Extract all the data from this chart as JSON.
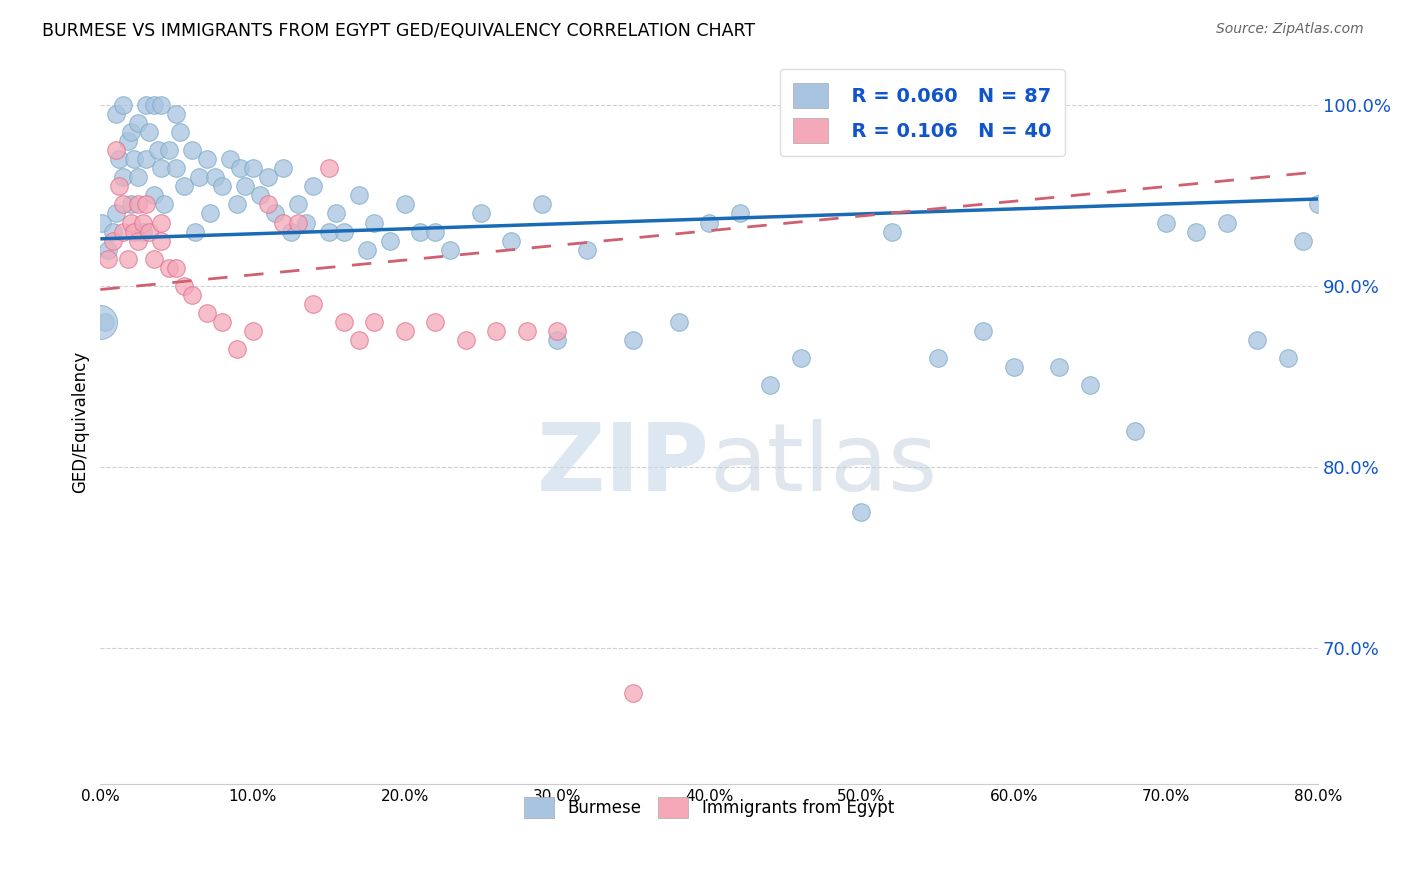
{
  "title": "BURMESE VS IMMIGRANTS FROM EGYPT GED/EQUIVALENCY CORRELATION CHART",
  "source": "Source: ZipAtlas.com",
  "ylabel": "GED/Equivalency",
  "x_min": 0.0,
  "x_max": 0.8,
  "y_min": 0.625,
  "y_max": 1.025,
  "ytick_vals": [
    0.7,
    0.8,
    0.9,
    1.0
  ],
  "ytick_labels": [
    "70.0%",
    "80.0%",
    "90.0%",
    "100.0%"
  ],
  "xtick_vals": [
    0.0,
    0.1,
    0.2,
    0.3,
    0.4,
    0.5,
    0.6,
    0.7,
    0.8
  ],
  "xtick_labels": [
    "0.0%",
    "10.0%",
    "20.0%",
    "30.0%",
    "40.0%",
    "50.0%",
    "60.0%",
    "70.0%",
    "80.0%"
  ],
  "burmese_R": 0.06,
  "burmese_N": 87,
  "egypt_R": 0.106,
  "egypt_N": 40,
  "burmese_color": "#a8c4e0",
  "burmese_edge_color": "#7aaac8",
  "egypt_color": "#f4a8b8",
  "egypt_edge_color": "#e07090",
  "burmese_line_color": "#1a6bb5",
  "egypt_line_color": "#d06070",
  "legend_color": "#1155cc",
  "watermark_color": "#c5d8ea",
  "grid_color": "#d0d0d0",
  "burmese_x": [
    0.001,
    0.003,
    0.005,
    0.008,
    0.01,
    0.01,
    0.012,
    0.015,
    0.015,
    0.018,
    0.02,
    0.02,
    0.022,
    0.025,
    0.025,
    0.028,
    0.03,
    0.03,
    0.032,
    0.035,
    0.035,
    0.038,
    0.04,
    0.04,
    0.042,
    0.045,
    0.05,
    0.05,
    0.052,
    0.055,
    0.06,
    0.062,
    0.065,
    0.07,
    0.072,
    0.075,
    0.08,
    0.085,
    0.09,
    0.092,
    0.095,
    0.1,
    0.105,
    0.11,
    0.115,
    0.12,
    0.125,
    0.13,
    0.135,
    0.14,
    0.15,
    0.155,
    0.16,
    0.17,
    0.175,
    0.18,
    0.19,
    0.2,
    0.21,
    0.22,
    0.23,
    0.25,
    0.27,
    0.29,
    0.3,
    0.32,
    0.35,
    0.38,
    0.4,
    0.42,
    0.44,
    0.46,
    0.5,
    0.52,
    0.55,
    0.58,
    0.6,
    0.63,
    0.65,
    0.68,
    0.7,
    0.72,
    0.74,
    0.76,
    0.78,
    0.79,
    0.8
  ],
  "burmese_y": [
    0.935,
    0.88,
    0.92,
    0.93,
    0.995,
    0.94,
    0.97,
    1.0,
    0.96,
    0.98,
    0.985,
    0.945,
    0.97,
    0.99,
    0.96,
    0.93,
    1.0,
    0.97,
    0.985,
    1.0,
    0.95,
    0.975,
    1.0,
    0.965,
    0.945,
    0.975,
    0.995,
    0.965,
    0.985,
    0.955,
    0.975,
    0.93,
    0.96,
    0.97,
    0.94,
    0.96,
    0.955,
    0.97,
    0.945,
    0.965,
    0.955,
    0.965,
    0.95,
    0.96,
    0.94,
    0.965,
    0.93,
    0.945,
    0.935,
    0.955,
    0.93,
    0.94,
    0.93,
    0.95,
    0.92,
    0.935,
    0.925,
    0.945,
    0.93,
    0.93,
    0.92,
    0.94,
    0.925,
    0.945,
    0.87,
    0.92,
    0.87,
    0.88,
    0.935,
    0.94,
    0.845,
    0.86,
    0.775,
    0.93,
    0.86,
    0.875,
    0.855,
    0.855,
    0.845,
    0.82,
    0.935,
    0.93,
    0.935,
    0.87,
    0.86,
    0.925,
    0.945
  ],
  "egypt_x": [
    0.005,
    0.008,
    0.01,
    0.012,
    0.015,
    0.015,
    0.018,
    0.02,
    0.022,
    0.025,
    0.025,
    0.028,
    0.03,
    0.032,
    0.035,
    0.04,
    0.04,
    0.045,
    0.05,
    0.055,
    0.06,
    0.07,
    0.08,
    0.09,
    0.1,
    0.11,
    0.12,
    0.13,
    0.14,
    0.15,
    0.16,
    0.17,
    0.18,
    0.2,
    0.22,
    0.24,
    0.26,
    0.28,
    0.3,
    0.35
  ],
  "egypt_y": [
    0.915,
    0.925,
    0.975,
    0.955,
    0.945,
    0.93,
    0.915,
    0.935,
    0.93,
    0.945,
    0.925,
    0.935,
    0.945,
    0.93,
    0.915,
    0.935,
    0.925,
    0.91,
    0.91,
    0.9,
    0.895,
    0.885,
    0.88,
    0.865,
    0.875,
    0.945,
    0.935,
    0.935,
    0.89,
    0.965,
    0.88,
    0.87,
    0.88,
    0.875,
    0.88,
    0.87,
    0.875,
    0.875,
    0.875,
    0.675
  ],
  "burmese_line_x0": 0.0,
  "burmese_line_x1": 0.8,
  "burmese_line_y0": 0.926,
  "burmese_line_y1": 0.948,
  "egypt_line_x0": 0.0,
  "egypt_line_x1": 0.8,
  "egypt_line_y0": 0.898,
  "egypt_line_y1": 0.963
}
